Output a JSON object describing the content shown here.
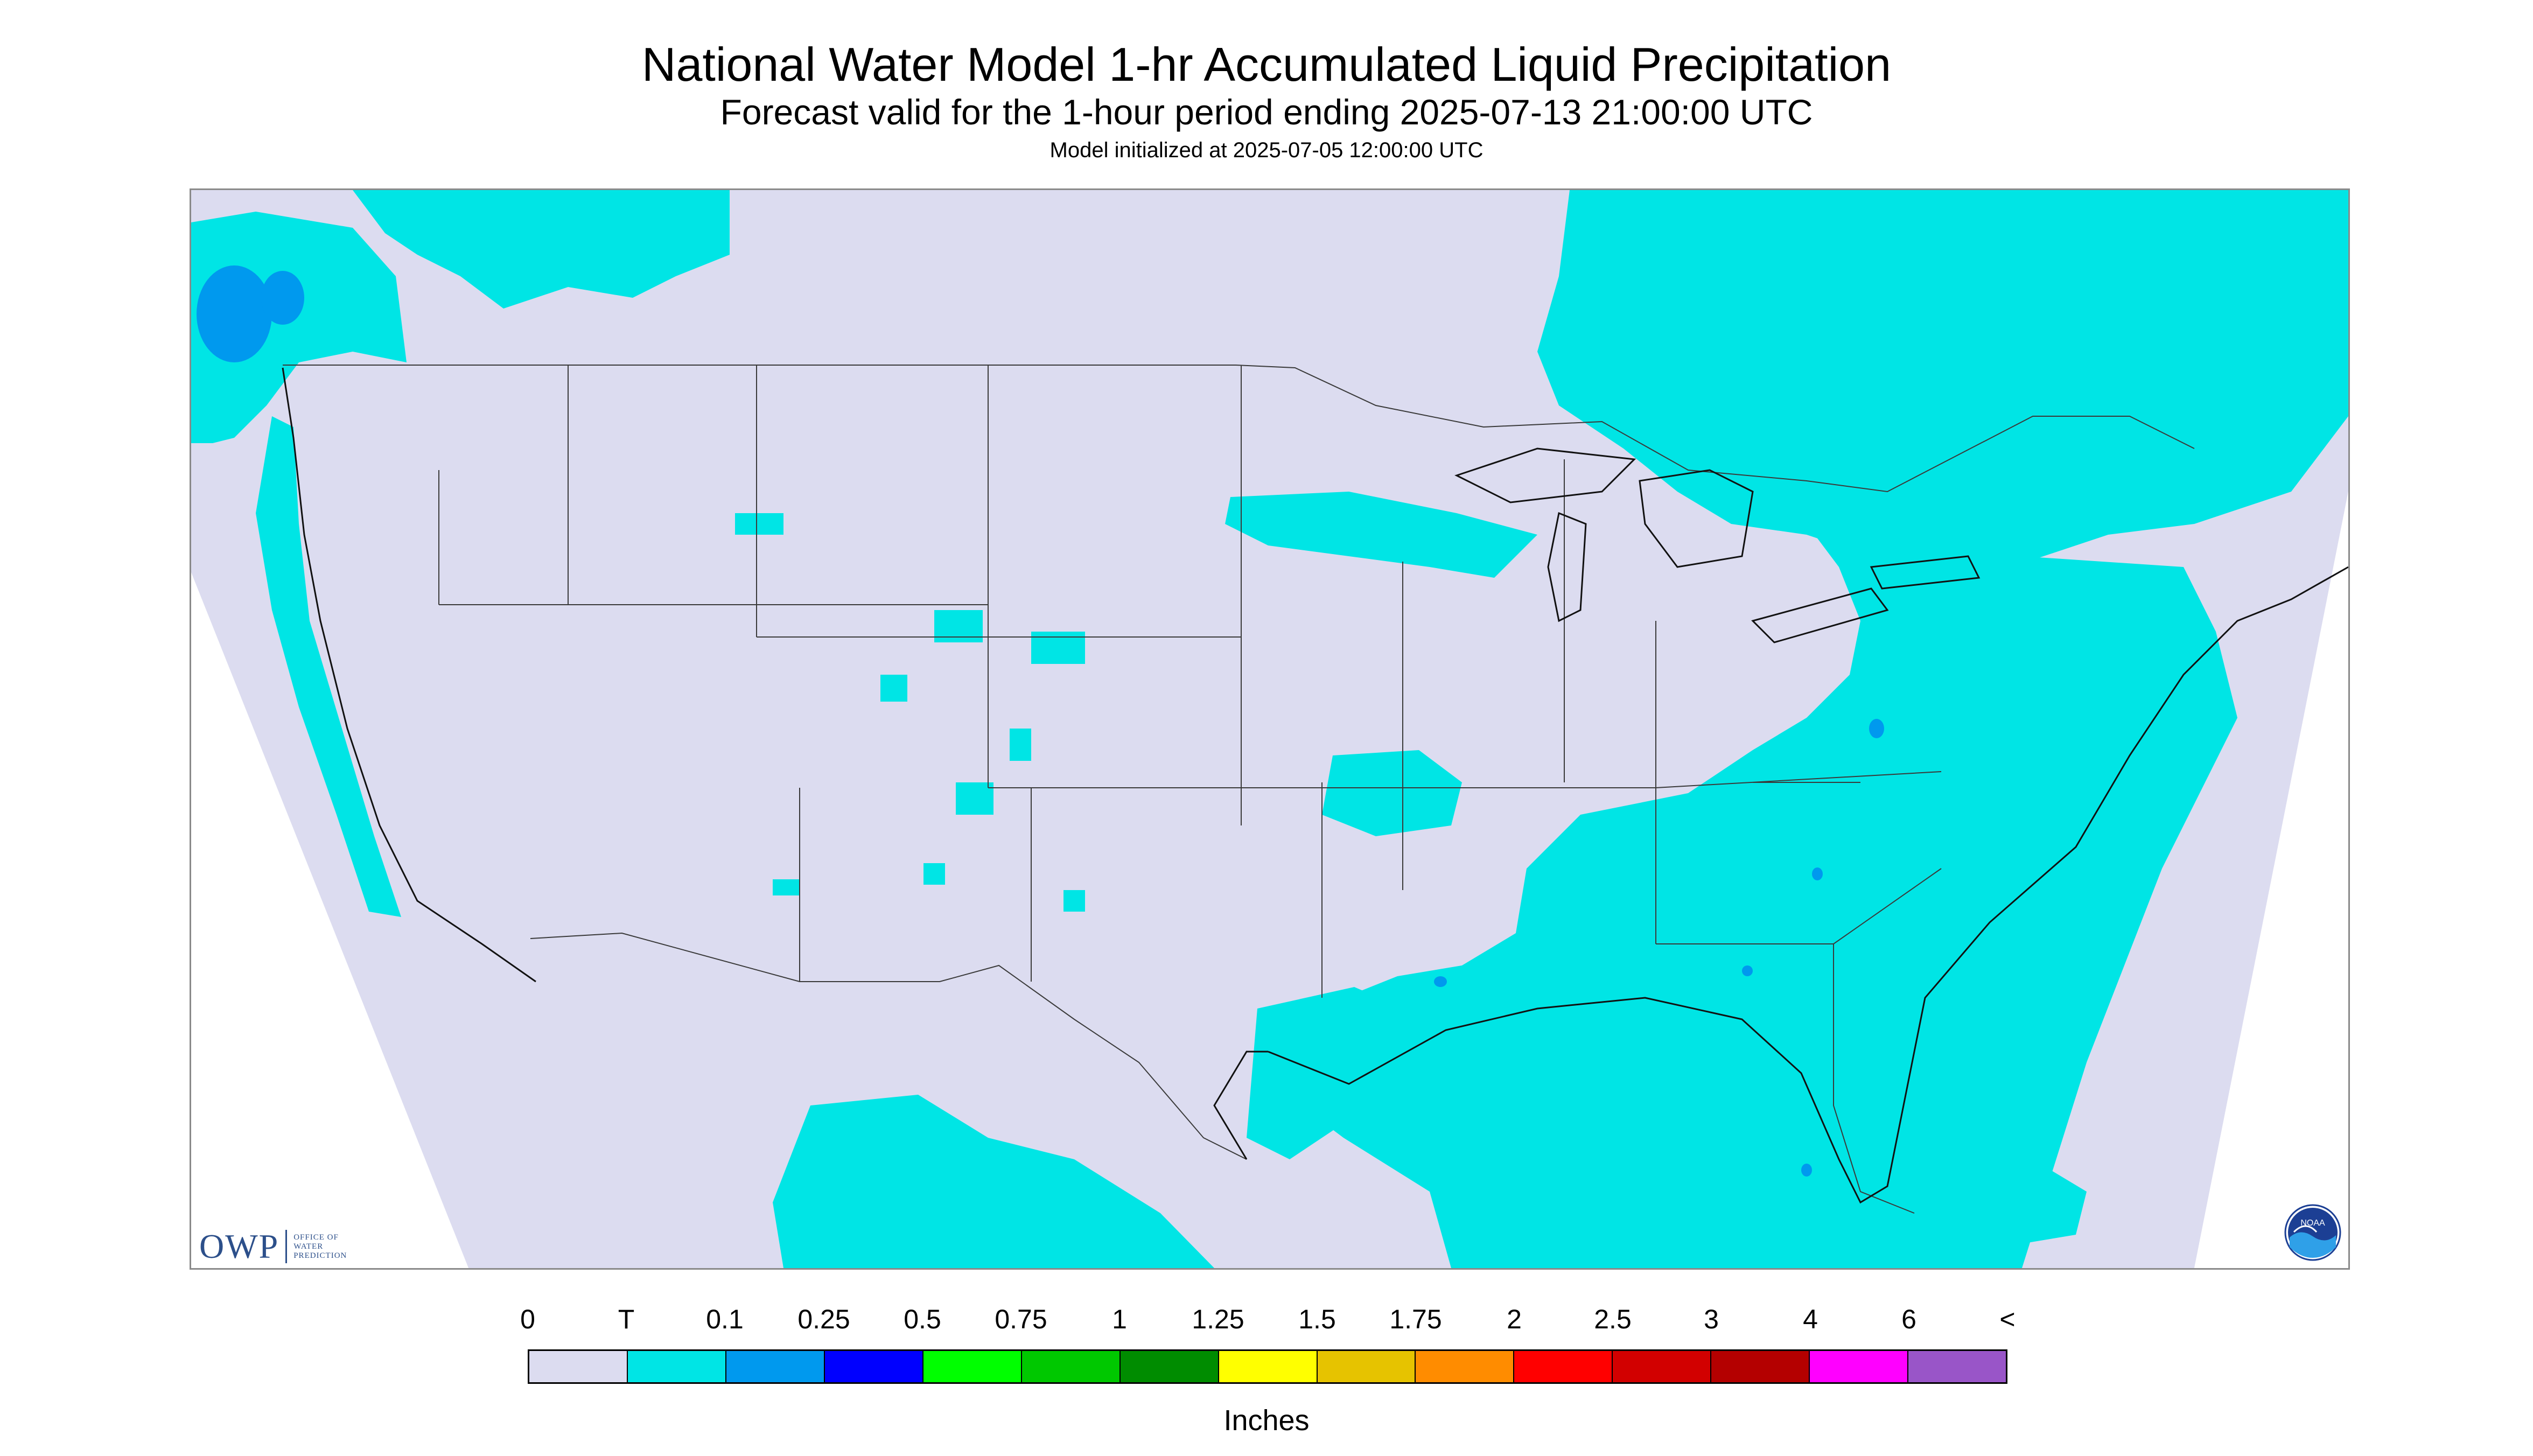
{
  "title": "National Water Model 1-hr Accumulated Liquid Precipitation",
  "subtitle": "Forecast valid for the 1-hour period ending 2025-07-13 21:00:00 UTC",
  "init_text": "Model initialized at 2025-07-05 12:00:00 UTC",
  "logos": {
    "owp_letters": "OWP",
    "owp_lines": [
      "OFFICE OF",
      "WATER",
      "PREDICTION"
    ],
    "noaa_text": "NOAA"
  },
  "colors": {
    "background": "#dcdcf0",
    "trace": "#00e5e5",
    "light_blue": "#0099ee",
    "outside": "#ffffff"
  },
  "legend": {
    "labels": [
      "0",
      "T",
      "0.1",
      "0.25",
      "0.5",
      "0.75",
      "1",
      "1.25",
      "1.5",
      "1.75",
      "2",
      "2.5",
      "3",
      "4",
      "6",
      "<"
    ],
    "colors": [
      "#dcdcf0",
      "#00e5e5",
      "#0099ee",
      "#0000ff",
      "#00ff00",
      "#00c800",
      "#008c00",
      "#ffff00",
      "#e6c300",
      "#ff8c00",
      "#ff0000",
      "#d20000",
      "#b40000",
      "#ff00ff",
      "#9955c8"
    ],
    "units": "Inches"
  }
}
